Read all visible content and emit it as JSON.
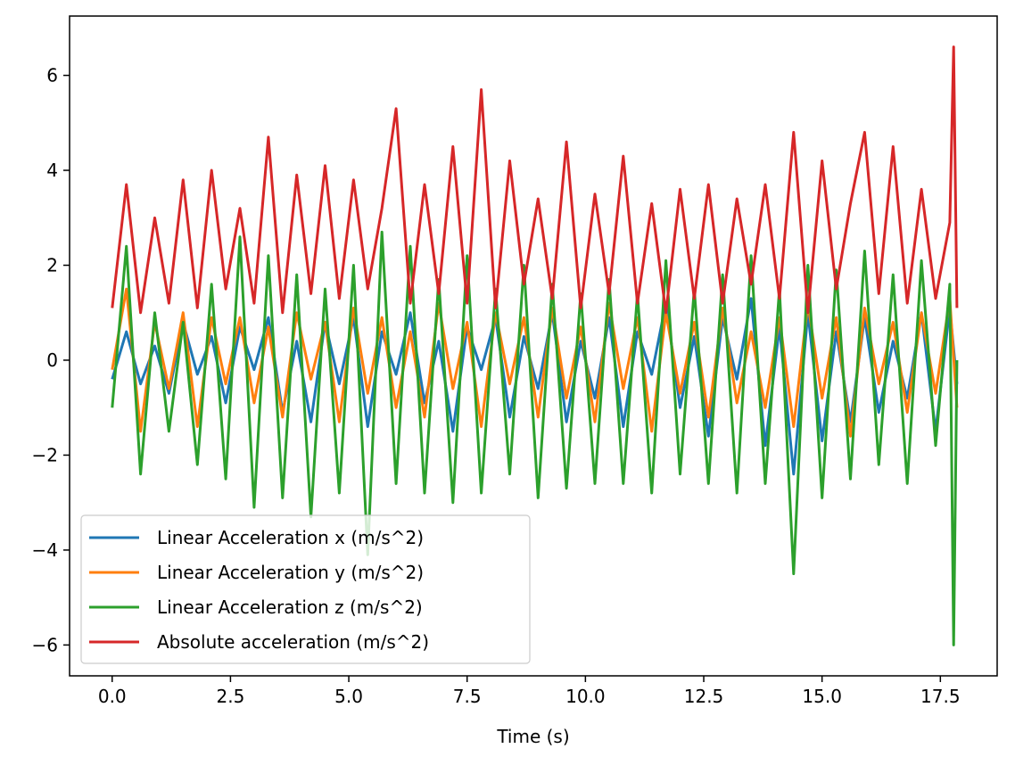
{
  "chart_data": {
    "type": "line",
    "title": "",
    "xlabel": "Time (s)",
    "ylabel": "",
    "xlim": [
      -0.9,
      18.7
    ],
    "ylim": [
      -6.65,
      7.25
    ],
    "xticks": [
      0.0,
      2.5,
      5.0,
      7.5,
      10.0,
      12.5,
      15.0,
      17.5
    ],
    "xtick_labels": [
      "0.0",
      "2.5",
      "5.0",
      "7.5",
      "10.0",
      "12.5",
      "15.0",
      "17.5"
    ],
    "yticks": [
      -6,
      -4,
      -2,
      0,
      2,
      4,
      6
    ],
    "ytick_labels": [
      "−6",
      "−4",
      "−2",
      "0",
      "2",
      "4",
      "6"
    ],
    "grid": false,
    "legend_position": "lower-left",
    "series": [
      {
        "name": "Linear Acceleration x (m/s^2)",
        "color": "#1f77b4",
        "x": [
          0.0,
          0.3,
          0.6,
          0.9,
          1.2,
          1.5,
          1.8,
          2.1,
          2.4,
          2.7,
          3.0,
          3.3,
          3.6,
          3.9,
          4.2,
          4.5,
          4.8,
          5.1,
          5.4,
          5.7,
          6.0,
          6.3,
          6.6,
          6.9,
          7.2,
          7.5,
          7.8,
          8.1,
          8.4,
          8.7,
          9.0,
          9.3,
          9.6,
          9.9,
          10.2,
          10.5,
          10.8,
          11.1,
          11.4,
          11.7,
          12.0,
          12.3,
          12.6,
          12.9,
          13.2,
          13.5,
          13.8,
          14.1,
          14.4,
          14.7,
          15.0,
          15.3,
          15.6,
          15.9,
          16.2,
          16.5,
          16.8,
          17.1,
          17.4,
          17.7,
          17.85
        ],
        "y": [
          -0.4,
          0.6,
          -0.5,
          0.3,
          -0.7,
          0.8,
          -0.3,
          0.5,
          -0.9,
          0.7,
          -0.2,
          0.9,
          -1.1,
          0.4,
          -1.3,
          0.8,
          -0.5,
          0.9,
          -1.4,
          0.6,
          -0.3,
          1.0,
          -0.9,
          0.4,
          -1.5,
          0.7,
          -0.2,
          0.9,
          -1.2,
          0.5,
          -0.6,
          1.0,
          -1.3,
          0.4,
          -0.8,
          0.9,
          -1.4,
          0.6,
          -0.3,
          1.2,
          -1.0,
          0.5,
          -1.6,
          0.9,
          -0.4,
          1.3,
          -1.8,
          0.7,
          -2.4,
          1.0,
          -1.7,
          0.6,
          -1.3,
          0.9,
          -1.1,
          0.4,
          -0.8,
          1.0,
          -1.5,
          1.1,
          -0.5
        ]
      },
      {
        "name": "Linear Acceleration y (m/s^2)",
        "color": "#ff7f0e",
        "x": [
          0.0,
          0.3,
          0.6,
          0.9,
          1.2,
          1.5,
          1.8,
          2.1,
          2.4,
          2.7,
          3.0,
          3.3,
          3.6,
          3.9,
          4.2,
          4.5,
          4.8,
          5.1,
          5.4,
          5.7,
          6.0,
          6.3,
          6.6,
          6.9,
          7.2,
          7.5,
          7.8,
          8.1,
          8.4,
          8.7,
          9.0,
          9.3,
          9.6,
          9.9,
          10.2,
          10.5,
          10.8,
          11.1,
          11.4,
          11.7,
          12.0,
          12.3,
          12.6,
          12.9,
          13.2,
          13.5,
          13.8,
          14.1,
          14.4,
          14.7,
          15.0,
          15.3,
          15.6,
          15.9,
          16.2,
          16.5,
          16.8,
          17.1,
          17.4,
          17.7,
          17.85
        ],
        "y": [
          -0.2,
          1.5,
          -1.5,
          0.8,
          -0.6,
          1.0,
          -1.4,
          0.9,
          -0.5,
          0.9,
          -0.9,
          0.7,
          -1.2,
          1.0,
          -0.4,
          0.8,
          -1.3,
          1.1,
          -0.7,
          0.9,
          -1.0,
          0.6,
          -1.2,
          1.2,
          -0.6,
          0.8,
          -1.4,
          1.0,
          -0.5,
          0.9,
          -1.2,
          1.1,
          -0.8,
          0.7,
          -1.3,
          1.2,
          -0.6,
          0.9,
          -1.5,
          1.0,
          -0.7,
          0.8,
          -1.2,
          1.1,
          -0.9,
          0.6,
          -1.0,
          0.9,
          -1.4,
          1.2,
          -0.8,
          0.9,
          -1.6,
          1.1,
          -0.5,
          0.8,
          -1.1,
          1.0,
          -0.7,
          1.3,
          -1.0
        ]
      },
      {
        "name": "Linear Acceleration z (m/s^2)",
        "color": "#2ca02c",
        "x": [
          0.0,
          0.3,
          0.6,
          0.9,
          1.2,
          1.5,
          1.8,
          2.1,
          2.4,
          2.7,
          3.0,
          3.3,
          3.6,
          3.9,
          4.2,
          4.5,
          4.8,
          5.1,
          5.4,
          5.7,
          6.0,
          6.3,
          6.6,
          6.9,
          7.2,
          7.5,
          7.8,
          8.1,
          8.4,
          8.7,
          9.0,
          9.3,
          9.6,
          9.9,
          10.2,
          10.5,
          10.8,
          11.1,
          11.4,
          11.7,
          12.0,
          12.3,
          12.6,
          12.9,
          13.2,
          13.5,
          13.8,
          14.1,
          14.4,
          14.7,
          15.0,
          15.3,
          15.6,
          15.9,
          16.2,
          16.5,
          16.8,
          17.1,
          17.4,
          17.7,
          17.78,
          17.85
        ],
        "y": [
          -1.0,
          2.4,
          -2.4,
          1.0,
          -1.5,
          0.8,
          -2.2,
          1.6,
          -2.5,
          2.6,
          -3.1,
          2.2,
          -2.9,
          1.8,
          -3.3,
          1.5,
          -2.8,
          2.0,
          -4.1,
          2.7,
          -2.6,
          2.4,
          -2.8,
          1.7,
          -3.0,
          2.2,
          -2.8,
          1.5,
          -2.4,
          2.0,
          -2.9,
          1.6,
          -2.7,
          1.4,
          -2.6,
          1.7,
          -2.6,
          1.4,
          -2.8,
          2.1,
          -2.4,
          1.5,
          -2.6,
          1.8,
          -2.8,
          2.2,
          -2.6,
          1.5,
          -4.5,
          2.0,
          -2.9,
          1.9,
          -2.5,
          2.3,
          -2.2,
          1.8,
          -2.6,
          2.1,
          -1.8,
          1.6,
          -6.0,
          0.0
        ]
      },
      {
        "name": "Absolute acceleration (m/s^2)",
        "color": "#d62728",
        "x": [
          0.0,
          0.3,
          0.6,
          0.9,
          1.2,
          1.5,
          1.8,
          2.1,
          2.4,
          2.7,
          3.0,
          3.3,
          3.6,
          3.9,
          4.2,
          4.5,
          4.8,
          5.1,
          5.4,
          5.7,
          6.0,
          6.3,
          6.6,
          6.9,
          7.2,
          7.5,
          7.8,
          8.1,
          8.4,
          8.7,
          9.0,
          9.3,
          9.6,
          9.9,
          10.2,
          10.5,
          10.8,
          11.1,
          11.4,
          11.7,
          12.0,
          12.3,
          12.6,
          12.9,
          13.2,
          13.5,
          13.8,
          14.1,
          14.4,
          14.7,
          15.0,
          15.3,
          15.6,
          15.9,
          16.2,
          16.5,
          16.8,
          17.1,
          17.4,
          17.7,
          17.78,
          17.85
        ],
        "y": [
          1.1,
          3.7,
          1.0,
          3.0,
          1.2,
          3.8,
          1.1,
          4.0,
          1.5,
          3.2,
          1.2,
          4.7,
          1.0,
          3.9,
          1.4,
          4.1,
          1.3,
          3.8,
          1.5,
          3.2,
          5.3,
          1.2,
          3.7,
          1.4,
          4.5,
          1.2,
          5.7,
          1.1,
          4.2,
          1.6,
          3.4,
          1.3,
          4.6,
          1.1,
          3.5,
          1.4,
          4.3,
          1.2,
          3.3,
          1.0,
          3.6,
          1.3,
          3.7,
          1.2,
          3.4,
          1.6,
          3.7,
          1.3,
          4.8,
          1.0,
          4.2,
          1.5,
          3.3,
          4.8,
          1.4,
          4.5,
          1.2,
          3.6,
          1.3,
          2.9,
          6.6,
          1.1
        ]
      }
    ]
  }
}
